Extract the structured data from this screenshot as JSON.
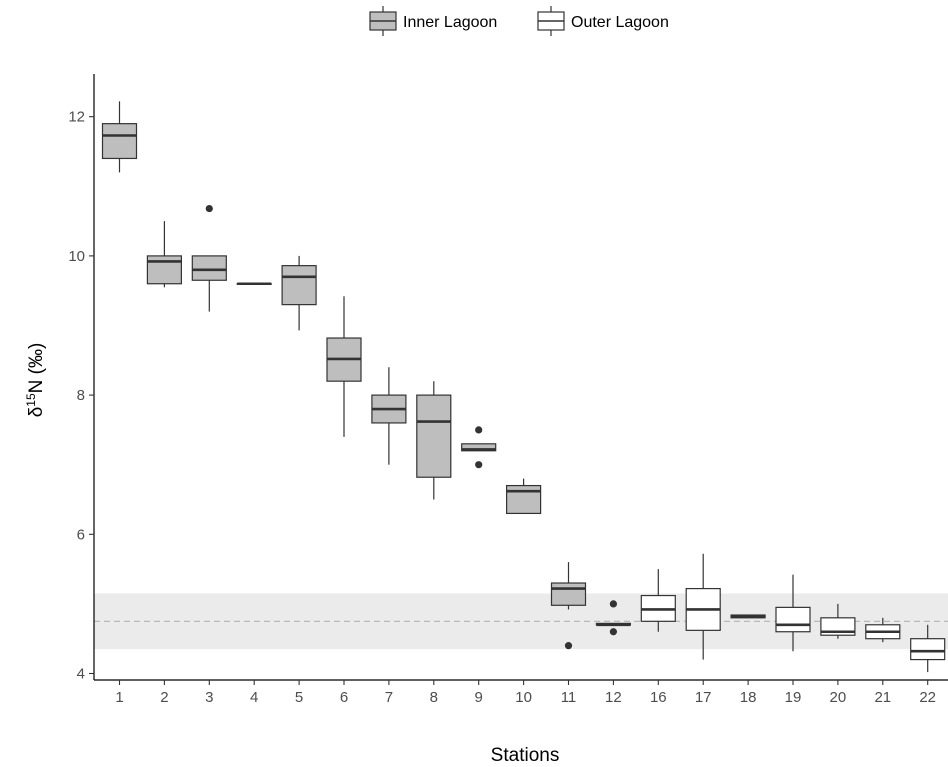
{
  "chart_data": {
    "type": "box",
    "xlabel": "Stations",
    "ylabel_prefix": "δ",
    "ylabel_superscript": "15",
    "ylabel_suffix": "N (‰)",
    "ylim": [
      3.6,
      12.6
    ],
    "yticks": [
      4,
      6,
      8,
      10,
      12
    ],
    "grid": false,
    "legend": {
      "position": "top",
      "entries": [
        {
          "name": "Inner Lagoon",
          "color": "#bebebe"
        },
        {
          "name": "Outer Lagoon",
          "color": "#ffffff"
        }
      ]
    },
    "reference_band": {
      "ymin": 4.35,
      "ymax": 5.15,
      "color": "#ebebeb"
    },
    "reference_line": {
      "y": 4.75,
      "style": "dashed",
      "color": "#b3b3b3"
    },
    "categories": [
      "1",
      "2",
      "3",
      "4",
      "5",
      "6",
      "7",
      "8",
      "9",
      "10",
      "11",
      "12",
      "16",
      "17",
      "18",
      "19",
      "20",
      "21",
      "22"
    ],
    "boxes": [
      {
        "station": "1",
        "group": "Inner Lagoon",
        "min": 11.2,
        "q1": 11.4,
        "median": 11.73,
        "q3": 11.9,
        "max": 12.22,
        "outliers": []
      },
      {
        "station": "2",
        "group": "Inner Lagoon",
        "min": 9.55,
        "q1": 9.6,
        "median": 9.92,
        "q3": 10.0,
        "max": 10.5,
        "outliers": []
      },
      {
        "station": "3",
        "group": "Inner Lagoon",
        "min": 9.2,
        "q1": 9.65,
        "median": 9.8,
        "q3": 10.0,
        "max": 10.0,
        "outliers": [
          10.68
        ]
      },
      {
        "station": "4",
        "group": "Inner Lagoon",
        "min": 9.6,
        "q1": 9.6,
        "median": 9.6,
        "q3": 9.6,
        "max": 9.6,
        "outliers": []
      },
      {
        "station": "5",
        "group": "Inner Lagoon",
        "min": 8.93,
        "q1": 9.3,
        "median": 9.7,
        "q3": 9.86,
        "max": 10.0,
        "outliers": []
      },
      {
        "station": "6",
        "group": "Inner Lagoon",
        "min": 7.4,
        "q1": 8.2,
        "median": 8.52,
        "q3": 8.82,
        "max": 9.42,
        "outliers": []
      },
      {
        "station": "7",
        "group": "Inner Lagoon",
        "min": 7.0,
        "q1": 7.6,
        "median": 7.8,
        "q3": 8.0,
        "max": 8.4,
        "outliers": []
      },
      {
        "station": "8",
        "group": "Inner Lagoon",
        "min": 6.5,
        "q1": 6.82,
        "median": 7.62,
        "q3": 8.0,
        "max": 8.2,
        "outliers": []
      },
      {
        "station": "9",
        "group": "Inner Lagoon",
        "min": 7.2,
        "q1": 7.2,
        "median": 7.22,
        "q3": 7.3,
        "max": 7.3,
        "outliers": [
          7.5,
          7.0
        ]
      },
      {
        "station": "10",
        "group": "Inner Lagoon",
        "min": 6.3,
        "q1": 6.3,
        "median": 6.62,
        "q3": 6.7,
        "max": 6.8,
        "outliers": []
      },
      {
        "station": "11",
        "group": "Inner Lagoon",
        "min": 4.92,
        "q1": 4.98,
        "median": 5.22,
        "q3": 5.3,
        "max": 5.6,
        "outliers": [
          4.4
        ]
      },
      {
        "station": "12",
        "group": "Inner Lagoon",
        "min": 4.7,
        "q1": 4.7,
        "median": 4.7,
        "q3": 4.72,
        "max": 4.72,
        "outliers": [
          5.0,
          4.6
        ]
      },
      {
        "station": "16",
        "group": "Outer Lagoon",
        "min": 4.6,
        "q1": 4.75,
        "median": 4.92,
        "q3": 5.12,
        "max": 5.5,
        "outliers": []
      },
      {
        "station": "17",
        "group": "Outer Lagoon",
        "min": 4.2,
        "q1": 4.62,
        "median": 4.92,
        "q3": 5.22,
        "max": 5.72,
        "outliers": []
      },
      {
        "station": "18",
        "group": "Outer Lagoon",
        "min": 4.8,
        "q1": 4.8,
        "median": 4.82,
        "q3": 4.84,
        "max": 4.84,
        "outliers": []
      },
      {
        "station": "19",
        "group": "Outer Lagoon",
        "min": 4.32,
        "q1": 4.6,
        "median": 4.7,
        "q3": 4.95,
        "max": 5.42,
        "outliers": []
      },
      {
        "station": "20",
        "group": "Outer Lagoon",
        "min": 4.5,
        "q1": 4.55,
        "median": 4.6,
        "q3": 4.8,
        "max": 5.0,
        "outliers": []
      },
      {
        "station": "21",
        "group": "Outer Lagoon",
        "min": 4.45,
        "q1": 4.5,
        "median": 4.6,
        "q3": 4.7,
        "max": 4.8,
        "outliers": []
      },
      {
        "station": "22",
        "group": "Outer Lagoon",
        "min": 4.02,
        "q1": 4.2,
        "median": 4.32,
        "q3": 4.5,
        "max": 4.7,
        "outliers": []
      }
    ]
  }
}
